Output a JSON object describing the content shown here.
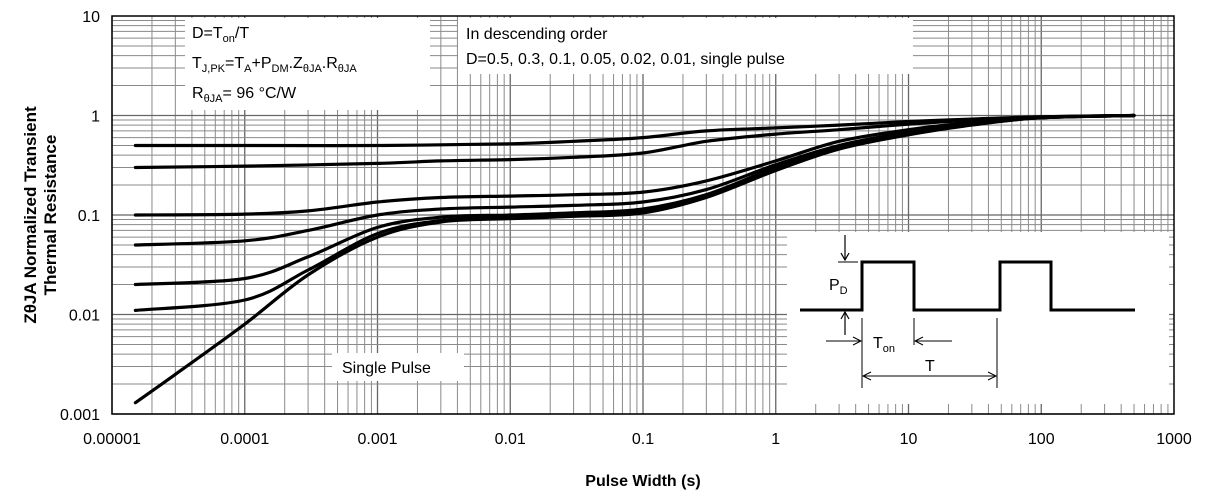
{
  "chart_data": {
    "type": "line",
    "title": "",
    "x_scale": "log",
    "y_scale": "log",
    "xlim": [
      1e-05,
      1000
    ],
    "ylim": [
      0.001,
      10
    ],
    "grid": true,
    "xlabel": "Pulse Width (s)",
    "ylabel_line1": "ZθJA Normalized Transient",
    "ylabel_line2": "Thermal Resistance",
    "x_ticks": [
      "0.00001",
      "0.0001",
      "0.001",
      "0.01",
      "0.1",
      "1",
      "10",
      "100",
      "1000"
    ],
    "y_ticks": [
      "0.001",
      "0.01",
      "0.1",
      "1",
      "10"
    ],
    "series": [
      {
        "label": "D=0.5",
        "x": [
          1.5e-05,
          0.0001,
          0.001,
          0.01,
          0.03,
          0.1,
          0.3,
          1,
          3,
          10,
          30,
          100,
          500
        ],
        "y": [
          0.5,
          0.5,
          0.5,
          0.52,
          0.55,
          0.6,
          0.7,
          0.75,
          0.8,
          0.87,
          0.92,
          0.97,
          1.0
        ]
      },
      {
        "label": "D=0.3",
        "x": [
          1.5e-05,
          0.0001,
          0.001,
          0.003,
          0.01,
          0.03,
          0.1,
          0.3,
          1,
          3,
          10,
          30,
          100,
          500
        ],
        "y": [
          0.3,
          0.31,
          0.33,
          0.35,
          0.36,
          0.38,
          0.42,
          0.55,
          0.65,
          0.72,
          0.82,
          0.9,
          0.97,
          1.0
        ]
      },
      {
        "label": "D=0.1",
        "x": [
          1.5e-05,
          0.0001,
          0.0003,
          0.001,
          0.003,
          0.01,
          0.03,
          0.1,
          0.3,
          1,
          3,
          10,
          30,
          100,
          500
        ],
        "y": [
          0.1,
          0.102,
          0.11,
          0.135,
          0.15,
          0.155,
          0.16,
          0.17,
          0.22,
          0.35,
          0.55,
          0.72,
          0.85,
          0.96,
          1.0
        ]
      },
      {
        "label": "D=0.05",
        "x": [
          1.5e-05,
          0.0001,
          0.0003,
          0.001,
          0.003,
          0.01,
          0.03,
          0.1,
          0.3,
          1,
          3,
          10,
          30,
          100,
          500
        ],
        "y": [
          0.05,
          0.055,
          0.07,
          0.1,
          0.115,
          0.12,
          0.125,
          0.135,
          0.18,
          0.32,
          0.5,
          0.68,
          0.83,
          0.95,
          1.0
        ]
      },
      {
        "label": "D=0.02",
        "x": [
          1.5e-05,
          0.0001,
          0.0003,
          0.001,
          0.003,
          0.01,
          0.03,
          0.1,
          0.3,
          1,
          3,
          10,
          30,
          100,
          500
        ],
        "y": [
          0.02,
          0.023,
          0.038,
          0.075,
          0.095,
          0.1,
          0.105,
          0.115,
          0.16,
          0.3,
          0.48,
          0.66,
          0.82,
          0.95,
          1.0
        ]
      },
      {
        "label": "D=0.01",
        "x": [
          1.5e-05,
          0.0001,
          0.0003,
          0.001,
          0.003,
          0.01,
          0.03,
          0.1,
          0.3,
          1,
          3,
          10,
          30,
          100,
          500
        ],
        "y": [
          0.011,
          0.014,
          0.028,
          0.065,
          0.088,
          0.095,
          0.1,
          0.11,
          0.155,
          0.29,
          0.47,
          0.65,
          0.81,
          0.95,
          1.0
        ]
      },
      {
        "label": "single pulse",
        "x": [
          1.5e-05,
          3e-05,
          0.0001,
          0.0003,
          0.001,
          0.003,
          0.01,
          0.03,
          0.1,
          0.3,
          1,
          3,
          10,
          30,
          100,
          500
        ],
        "y": [
          0.0013,
          0.0025,
          0.008,
          0.025,
          0.06,
          0.085,
          0.092,
          0.097,
          0.105,
          0.15,
          0.28,
          0.46,
          0.64,
          0.8,
          0.95,
          1.0
        ]
      }
    ],
    "annotations": {
      "duty_box": {
        "line1": "D=T",
        "line1_sub": "on",
        "line1_tail": "/T",
        "line2": "T",
        "line2_sub": "J,PK",
        "line2_mid1": "=T",
        "line2_sub2": "A",
        "line2_mid2": "+P",
        "line2_sub3": "DM",
        "line2_mid3": ".Z",
        "line2_sub4": "θJA",
        "line2_mid4": ".R",
        "line2_sub5": "θJA",
        "line3": "R",
        "line3_sub": "θJA",
        "line3_tail": "= 96 °C/W"
      },
      "order_box": {
        "line1": "In descending order",
        "line2": "D=0.5, 0.3, 0.1, 0.05, 0.02, 0.01, single pulse"
      },
      "single_pulse_label": "Single Pulse",
      "inset": {
        "pd": "P",
        "pd_sub": "D",
        "ton": "T",
        "ton_sub": "on",
        "t": "T"
      }
    }
  }
}
